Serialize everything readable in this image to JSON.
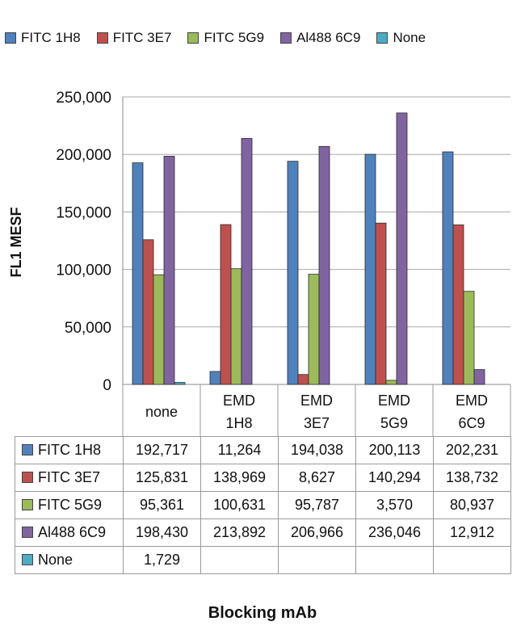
{
  "chart_data": {
    "type": "bar",
    "xlabel": "Blocking mAb",
    "ylabel": "FL1 MESF",
    "ylim": [
      0,
      250000
    ],
    "yticks": [
      "0",
      "50,000",
      "100,000",
      "150,000",
      "200,000",
      "250,000"
    ],
    "grid": true,
    "legend_position": "top",
    "categories": [
      {
        "line1": "none",
        "line2": ""
      },
      {
        "line1": "EMD",
        "line2": "1H8"
      },
      {
        "line1": "EMD",
        "line2": "3E7"
      },
      {
        "line1": "EMD",
        "line2": "5G9"
      },
      {
        "line1": "EMD",
        "line2": "6C9"
      }
    ],
    "series": [
      {
        "name": "FITC 1H8",
        "color": "#4f81bd",
        "values": [
          192717,
          11264,
          194038,
          200113,
          202231
        ],
        "labels": [
          "192,717",
          "11,264",
          "194,038",
          "200,113",
          "202,231"
        ]
      },
      {
        "name": "FITC 3E7",
        "color": "#c0504d",
        "values": [
          125831,
          138969,
          8627,
          140294,
          138732
        ],
        "labels": [
          "125,831",
          "138,969",
          "8,627",
          "140,294",
          "138,732"
        ]
      },
      {
        "name": "FITC 5G9",
        "color": "#9bbb59",
        "values": [
          95361,
          100631,
          95787,
          3570,
          80937
        ],
        "labels": [
          "95,361",
          "100,631",
          "95,787",
          "3,570",
          "80,937"
        ]
      },
      {
        "name": "Al488 6C9",
        "color": "#8064a2",
        "values": [
          198430,
          213892,
          206966,
          236046,
          12912
        ],
        "labels": [
          "198,430",
          "213,892",
          "206,966",
          "236,046",
          "12,912"
        ]
      },
      {
        "name": "None",
        "color": "#4bacc6",
        "values": [
          1729,
          null,
          null,
          null,
          null
        ],
        "labels": [
          "1,729",
          "",
          "",
          "",
          ""
        ]
      }
    ]
  }
}
